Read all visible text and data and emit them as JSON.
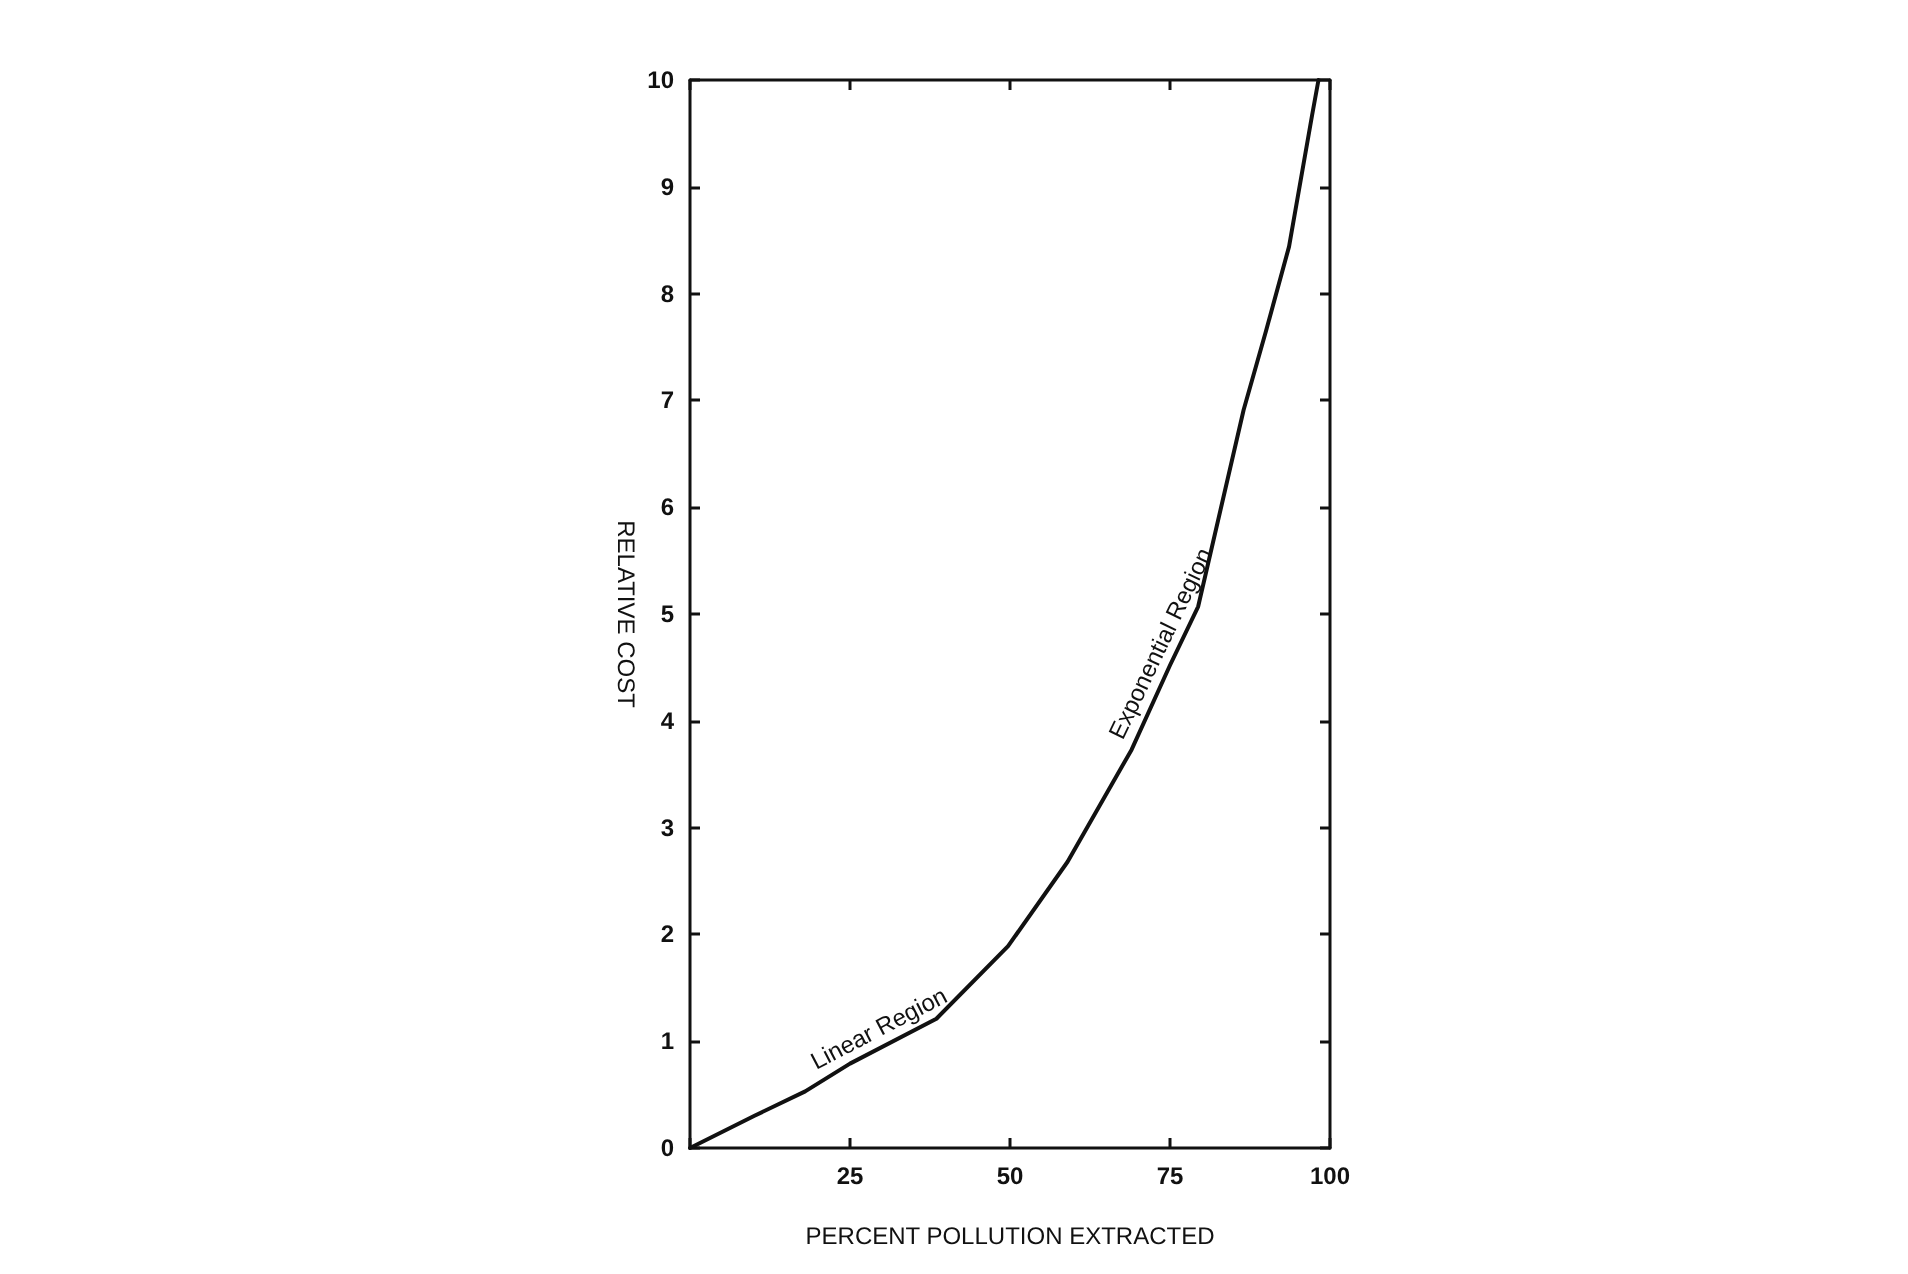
{
  "chart_data": {
    "type": "line",
    "xlabel": "PERCENT POLLUTION EXTRACTED",
    "ylabel": "RELATIVE COST",
    "x": [
      0,
      10,
      18,
      25,
      38.5,
      49.7,
      59,
      69,
      75,
      79.4,
      86.5,
      90,
      93.6,
      97.2,
      98.2
    ],
    "series": [
      {
        "color": "#111111",
        "values": [
          0,
          0.3,
          0.53,
          0.79,
          1.21,
          1.89,
          2.68,
          3.73,
          4.52,
          5.07,
          6.91,
          7.65,
          8.44,
          9.67,
          10
        ]
      }
    ],
    "xlim": [
      0,
      100
    ],
    "ylim": [
      0,
      10
    ],
    "xticks": [
      {
        "value": 0,
        "label": null
      },
      25,
      50,
      75,
      100
    ],
    "yticks": [
      0,
      1,
      2,
      3,
      4,
      5,
      6,
      7,
      8,
      9,
      10
    ],
    "annotations": [
      "Linear Region",
      "Exponential Region"
    ],
    "marker": "none",
    "line_style": "solid",
    "grid": false
  }
}
